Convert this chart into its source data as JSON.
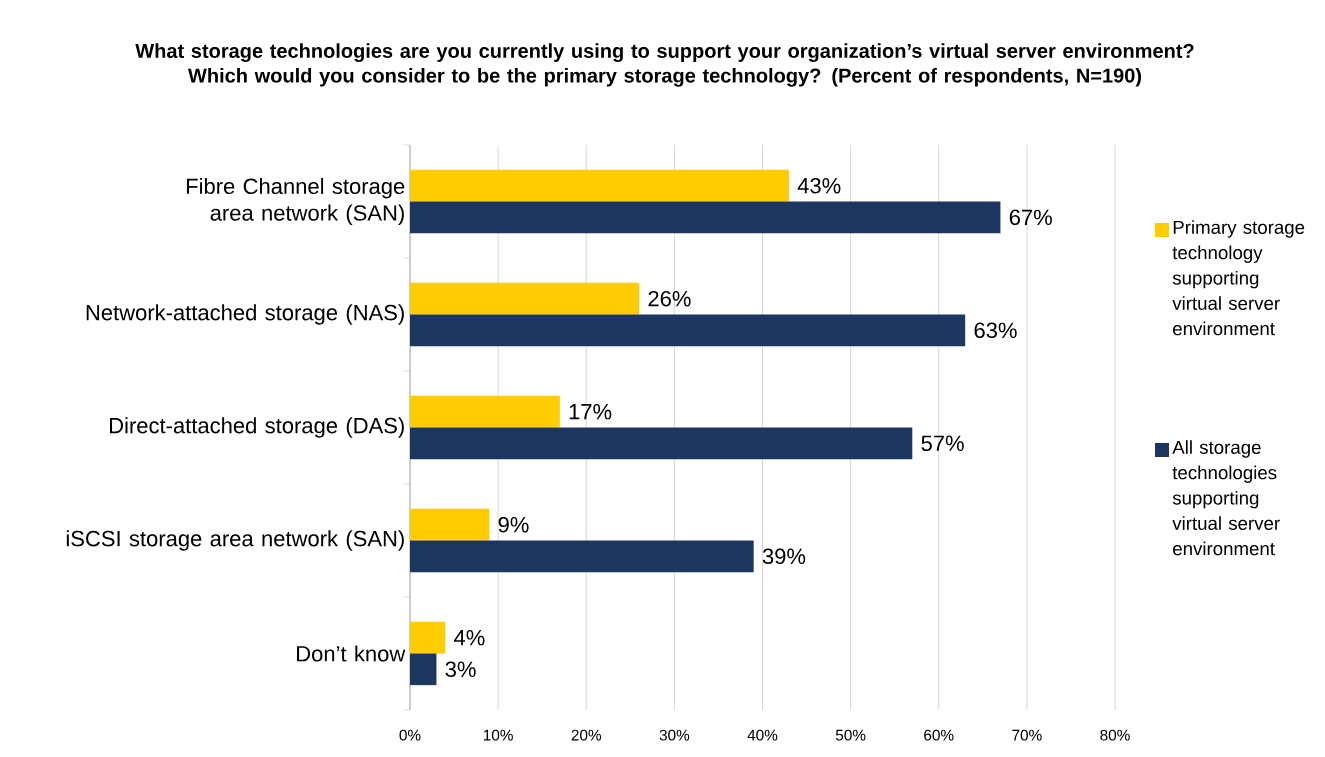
{
  "chart_data": {
    "type": "bar",
    "orientation": "horizontal",
    "title": "What storage technologies are you currently using to support your organization’s virtual server environment? Which would you consider to be the primary storage technology? (Percent of respondents, N=190)",
    "categories": [
      "Fibre Channel storage area network (SAN)",
      "Network-attached storage (NAS)",
      "Direct-attached storage (DAS)",
      "iSCSI storage area network (SAN)",
      "Don’t know"
    ],
    "series": [
      {
        "name": "Primary storage technology supporting virtual server environment",
        "color": "#ffcc00",
        "values": [
          43,
          26,
          17,
          9,
          4
        ],
        "value_labels": [
          "43%",
          "26%",
          "17%",
          "9%",
          "4%"
        ]
      },
      {
        "name": "All storage technologies supporting virtual server environment",
        "color": "#1c3660",
        "values": [
          67,
          63,
          57,
          39,
          3
        ],
        "value_labels": [
          "67%",
          "63%",
          "57%",
          "39%",
          "3%"
        ]
      }
    ],
    "xlim": [
      0,
      80
    ],
    "xticks": [
      {
        "value": 0,
        "label": "0%"
      },
      {
        "value": 10,
        "label": "10%"
      },
      {
        "value": 20,
        "label": "20%"
      },
      {
        "value": 30,
        "label": "30%"
      },
      {
        "value": 40,
        "label": "40%"
      },
      {
        "value": 50,
        "label": "50%"
      },
      {
        "value": 60,
        "label": "60%"
      },
      {
        "value": 70,
        "label": "70%"
      },
      {
        "value": 80,
        "label": "80%"
      }
    ],
    "grid": "x",
    "legend": "right"
  }
}
